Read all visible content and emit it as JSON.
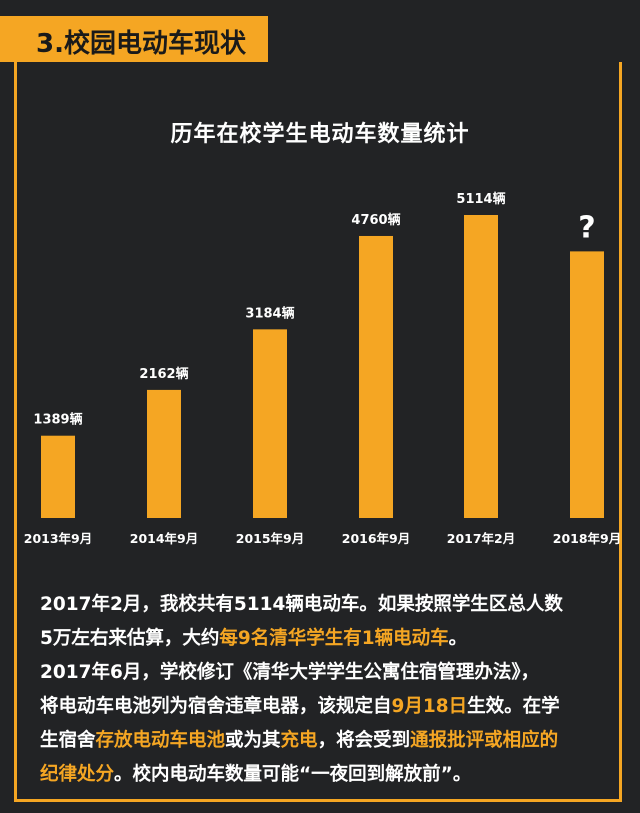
{
  "section": {
    "label": "3.校园电动车现状"
  },
  "chart_data": {
    "type": "bar",
    "title": "历年在校学生电动车数量统计",
    "categories": [
      "2013年9月",
      "2014年9月",
      "2015年9月",
      "2016年9月",
      "2017年2月",
      "2018年9月"
    ],
    "values": [
      1389,
      2162,
      3184,
      4760,
      5114,
      null
    ],
    "data_labels": [
      "1389辆",
      "2162辆",
      "3184辆",
      "4760辆",
      "5114辆",
      "?"
    ],
    "unknown_bar_value": 4500,
    "bar_color": "#F5A623",
    "grid": false,
    "legend": "none"
  },
  "paragraphs": [
    [
      {
        "t": "2017年2月，我校共有5114辆电动车。如果按照学生区总人数"
      }
    ],
    [
      {
        "t": "5万左右来估算，大约"
      },
      {
        "t": "每9名清华学生有1辆电动车",
        "hl": true
      },
      {
        "t": "。"
      }
    ],
    [
      {
        "t": "2017年6月，学校修订《清华大学学生公寓住宿管理办法》，"
      }
    ],
    [
      {
        "t": "将电动车电池列为宿舍违章电器，该规定自"
      },
      {
        "t": "9月18日",
        "hl": true
      },
      {
        "t": "生效。在学"
      }
    ],
    [
      {
        "t": "生宿舍"
      },
      {
        "t": "存放电动车电池",
        "hl": true
      },
      {
        "t": "或为其"
      },
      {
        "t": "充电",
        "hl": true
      },
      {
        "t": "，将会受到"
      },
      {
        "t": "通报批评或相应的",
        "hl": true
      }
    ],
    [
      {
        "t": "纪律处分",
        "hl": true
      },
      {
        "t": "。校内电动车数量可能“一夜回到解放前”。"
      }
    ]
  ],
  "colors": {
    "accent": "#F5A623",
    "background": "#222325",
    "text": "#ffffff"
  }
}
